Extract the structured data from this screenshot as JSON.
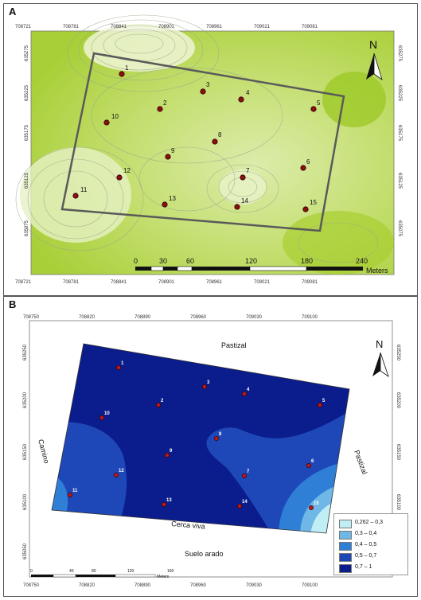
{
  "panelA": {
    "letter": "A",
    "x_ticks": [
      "708721",
      "708781",
      "708841",
      "708901",
      "708961",
      "709021",
      "709081"
    ],
    "y_ticks": [
      "635275",
      "635225",
      "635175",
      "635125",
      "635075"
    ],
    "scale_labels": [
      "0",
      "30",
      "60",
      "120",
      "180",
      "240"
    ],
    "scale_unit": "Meters",
    "north": "N",
    "colors": {
      "light": "#eef6d2",
      "mid": "#c9e07a",
      "dark": "#a6cf2e",
      "point": "#8a1010",
      "plot_outline": "#555555"
    }
  },
  "panelB": {
    "letter": "B",
    "x_ticks": [
      "708750",
      "708820",
      "708890",
      "708960",
      "709030",
      "709100"
    ],
    "y_ticks": [
      "635250",
      "635200",
      "635150",
      "635100",
      "635050"
    ],
    "annotations": {
      "top": "Pastizal",
      "left": "Camino",
      "right": "Pastizal",
      "bottom": "Cerca viva",
      "below": "Suelo arado"
    },
    "scale_labels": [
      "0",
      "40",
      "80",
      "120",
      "160"
    ],
    "scale_unit": "Meters",
    "north": "N",
    "legend": [
      {
        "label": "0,262 – 0,3",
        "color": "#bfeef4"
      },
      {
        "label": "0,3 – 0,4",
        "color": "#6fb7e6"
      },
      {
        "label": "0,4 – 0,5",
        "color": "#2f7fd6"
      },
      {
        "label": "0,5 – 0,7",
        "color": "#1e47b8"
      },
      {
        "label": "0,7 – 1",
        "color": "#0b1c8c"
      }
    ]
  },
  "points": [
    "1",
    "2",
    "3",
    "4",
    "5",
    "6",
    "7",
    "8",
    "9",
    "10",
    "11",
    "12",
    "13",
    "14",
    "15"
  ]
}
